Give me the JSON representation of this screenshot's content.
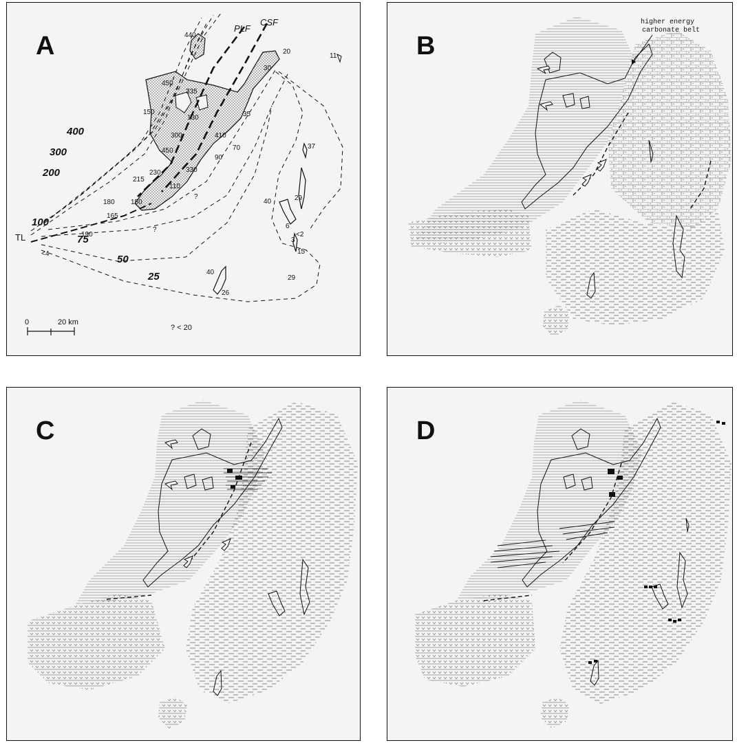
{
  "panels": [
    {
      "letter": "A"
    },
    {
      "letter": "B"
    },
    {
      "letter": "C"
    },
    {
      "letter": "D"
    }
  ],
  "panel_a": {
    "fault_labels": {
      "plf": "PLF",
      "csf": "CSF",
      "tl": "TL"
    },
    "contour_labels": {
      "c400": "400",
      "c300": "300",
      "c200": "200",
      "c100": "100",
      "c75": "75",
      "c50": "50",
      "c25": "25"
    },
    "depth_labels": [
      "440",
      "450",
      "335",
      "150",
      "130",
      "35",
      "30",
      "20",
      "11",
      "300",
      "410",
      "70",
      "450",
      "330",
      "90",
      "37",
      "230",
      "215",
      "110",
      "180",
      "165",
      "150",
      "40",
      "29",
      "6",
      "<2",
      "3",
      "15",
      "190",
      "<4",
      "29",
      "40",
      "26",
      "?",
      "?"
    ],
    "scale_zero": "0",
    "scale_label": "20 km",
    "note": "? < 20"
  },
  "panel_b": {
    "annotation_line1": "higher energy",
    "annotation_line2": "carbonate belt"
  },
  "colors": {
    "ink": "#111111",
    "stipple": "#9a9a9a",
    "hatch": "#8c8c8c",
    "background": "#f4f4f2"
  }
}
